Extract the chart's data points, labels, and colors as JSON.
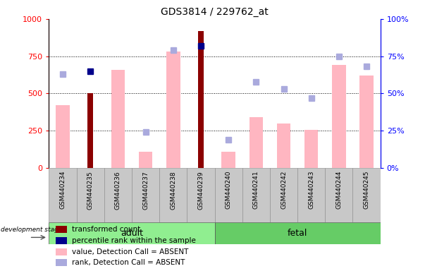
{
  "title": "GDS3814 / 229762_at",
  "samples": [
    "GSM440234",
    "GSM440235",
    "GSM440236",
    "GSM440237",
    "GSM440238",
    "GSM440239",
    "GSM440240",
    "GSM440241",
    "GSM440242",
    "GSM440243",
    "GSM440244",
    "GSM440245"
  ],
  "adult_count": 6,
  "fetal_count": 6,
  "transformed_count": [
    null,
    500,
    null,
    null,
    null,
    920,
    null,
    null,
    null,
    null,
    null,
    null
  ],
  "percentile_rank": [
    null,
    65,
    null,
    null,
    null,
    82,
    null,
    null,
    null,
    null,
    null,
    null
  ],
  "absent_value": [
    420,
    null,
    660,
    110,
    780,
    null,
    110,
    340,
    300,
    255,
    690,
    620
  ],
  "absent_rank": [
    63,
    null,
    null,
    24,
    79,
    null,
    19,
    58,
    53,
    47,
    75,
    68
  ],
  "left_ylim": [
    0,
    1000
  ],
  "right_ylim": [
    0,
    100
  ],
  "left_yticks": [
    0,
    250,
    500,
    750,
    1000
  ],
  "right_yticks": [
    0,
    25,
    50,
    75,
    100
  ],
  "left_yticklabels": [
    "0",
    "250",
    "500",
    "750",
    "1000"
  ],
  "right_yticklabels": [
    "0%",
    "25%",
    "50%",
    "75%",
    "100%"
  ],
  "dark_red": "#8B0000",
  "pink": "#FFB6C1",
  "dark_blue": "#00008B",
  "light_blue": "#AAAADD",
  "green_adult": "#90EE90",
  "green_fetal": "#66CC66",
  "group_label_bg": "#C8C8C8",
  "legend_items": [
    {
      "color": "#8B0000",
      "label": "transformed count"
    },
    {
      "color": "#00008B",
      "label": "percentile rank within the sample"
    },
    {
      "color": "#FFB6C1",
      "label": "value, Detection Call = ABSENT"
    },
    {
      "color": "#AAAADD",
      "label": "rank, Detection Call = ABSENT"
    }
  ]
}
